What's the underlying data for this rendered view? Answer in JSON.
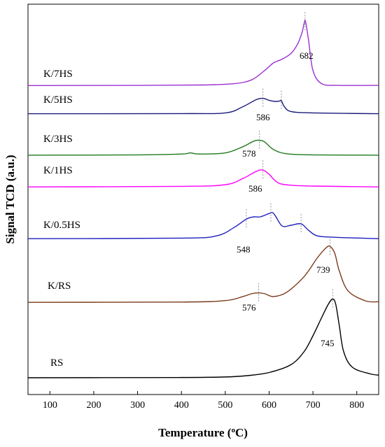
{
  "chart_data": {
    "type": "line",
    "xlabel_main": "Temperature (",
    "xlabel_sup": "o",
    "xlabel_tail": "C)",
    "ylabel": "Signal TCD (a.u.)",
    "xlim": [
      50,
      850
    ],
    "xticks": [
      100,
      200,
      300,
      400,
      500,
      600,
      700,
      800
    ],
    "grid": false,
    "series": [
      {
        "name": "K/7HS",
        "color": "#9b30d0",
        "baseline": 0.5,
        "x": [
          50,
          300,
          450,
          520,
          560,
          590,
          610,
          630,
          650,
          665,
          675,
          680,
          683,
          690,
          700,
          720,
          760,
          850
        ],
        "y": [
          0.0,
          0.05,
          0.15,
          0.5,
          1.5,
          4.0,
          6.0,
          7.0,
          8.5,
          11.0,
          14.0,
          16.5,
          17.0,
          12.0,
          4.0,
          0.5,
          0.05,
          0.05
        ],
        "peaks": [
          682
        ]
      },
      {
        "name": "K/5HS",
        "color": "#1a1a7a",
        "baseline": 0.1,
        "x": [
          50,
          400,
          500,
          540,
          570,
          586,
          600,
          615,
          625,
          628,
          635,
          650,
          700,
          850
        ],
        "y": [
          0.0,
          0.05,
          0.3,
          2.5,
          5.0,
          5.5,
          4.8,
          4.4,
          4.6,
          4.7,
          2.5,
          0.8,
          0.3,
          0.0
        ],
        "peaks": [
          586,
          628
        ]
      },
      {
        "name": "K/3HS",
        "color": "#1f7a1f",
        "baseline": 0.3,
        "x": [
          50,
          300,
          400,
          420,
          440,
          500,
          540,
          565,
          578,
          590,
          610,
          640,
          700,
          850
        ],
        "y": [
          0.0,
          0.1,
          0.4,
          0.8,
          0.4,
          0.8,
          3.0,
          5.0,
          5.3,
          4.7,
          2.0,
          0.5,
          0.1,
          0.0
        ],
        "peaks": [
          578
        ]
      },
      {
        "name": "K/1HS",
        "color": "#ff00ff",
        "baseline": 0.7,
        "x": [
          50,
          400,
          500,
          540,
          570,
          586,
          600,
          620,
          650,
          700,
          850
        ],
        "y": [
          0.0,
          0.2,
          0.8,
          3.0,
          5.5,
          6.0,
          4.5,
          1.5,
          0.6,
          0.3,
          0.0
        ],
        "peaks": [
          586
        ]
      },
      {
        "name": "K/0.5HS",
        "color": "#1f1fbf",
        "baseline": 0.7,
        "x": [
          50,
          400,
          480,
          520,
          548,
          565,
          580,
          600,
          608,
          615,
          630,
          650,
          673,
          690,
          710,
          750,
          850
        ],
        "y": [
          0.0,
          0.2,
          1.0,
          4.0,
          7.0,
          7.8,
          7.8,
          9.0,
          9.3,
          8.0,
          4.5,
          4.8,
          5.3,
          3.0,
          1.0,
          0.5,
          0.0
        ],
        "peaks": [
          548,
          604,
          673
        ]
      },
      {
        "name": "K/RS",
        "color": "#7a3a1a",
        "baseline": 0.2,
        "x": [
          50,
          400,
          500,
          540,
          560,
          576,
          590,
          610,
          640,
          680,
          710,
          730,
          739,
          750,
          760,
          780,
          820,
          850
        ],
        "y": [
          0.0,
          0.1,
          0.6,
          2.0,
          3.0,
          3.3,
          3.0,
          2.0,
          3.5,
          9.0,
          15.5,
          19.0,
          19.5,
          17.0,
          11.0,
          4.0,
          0.5,
          0.2
        ],
        "peaks": [
          576,
          739
        ]
      },
      {
        "name": "RS",
        "color": "#000000",
        "baseline": 0.0,
        "x": [
          50,
          400,
          500,
          550,
          600,
          650,
          680,
          700,
          720,
          735,
          745,
          752,
          760,
          770,
          790,
          830,
          850
        ],
        "y": [
          0.0,
          0.1,
          0.3,
          0.8,
          2.0,
          5.0,
          10.0,
          16.0,
          23.0,
          28.0,
          30.0,
          28.0,
          20.0,
          10.0,
          4.0,
          1.5,
          1.0
        ],
        "peaks": [
          745
        ]
      }
    ]
  }
}
